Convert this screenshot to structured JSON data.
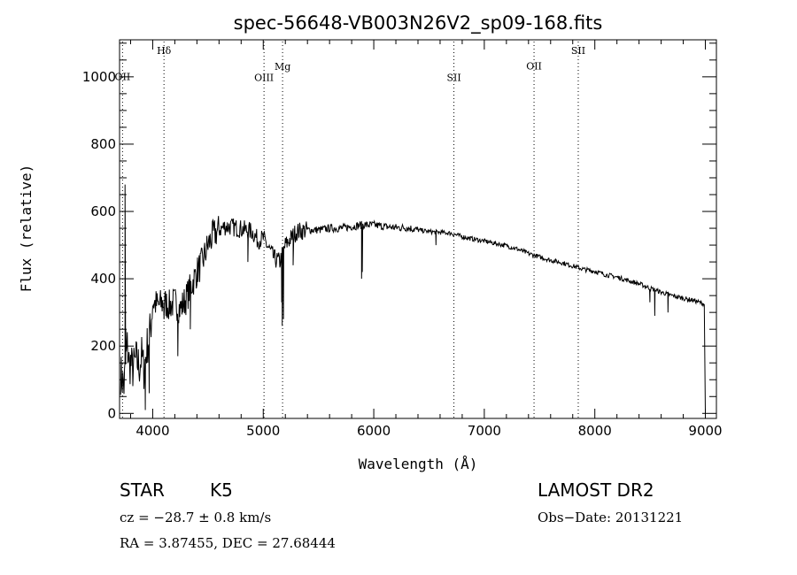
{
  "chart_data": {
    "type": "line",
    "title": "spec-56648-VB003N26V2_sp09-168.fits",
    "xlabel": "Wavelength (Å)",
    "ylabel": "Flux (relative)",
    "xlim": [
      3700,
      9100
    ],
    "ylim": [
      -15,
      1110
    ],
    "xticks": [
      4000,
      5000,
      6000,
      7000,
      8000,
      9000
    ],
    "yticks": [
      0,
      200,
      400,
      600,
      800,
      1000
    ],
    "grid": false,
    "line_color": "#000000",
    "anchors": [
      [
        3710,
        120
      ],
      [
        3740,
        80
      ],
      [
        3770,
        200
      ],
      [
        3790,
        140
      ],
      [
        3800,
        150
      ],
      [
        3820,
        130
      ],
      [
        3850,
        160
      ],
      [
        3880,
        140
      ],
      [
        3900,
        170
      ],
      [
        3920,
        130
      ],
      [
        3950,
        200
      ],
      [
        3980,
        250
      ],
      [
        4000,
        330
      ],
      [
        4050,
        320
      ],
      [
        4100,
        330
      ],
      [
        4150,
        320
      ],
      [
        4200,
        330
      ],
      [
        4250,
        310
      ],
      [
        4300,
        340
      ],
      [
        4350,
        380
      ],
      [
        4400,
        420
      ],
      [
        4450,
        450
      ],
      [
        4500,
        500
      ],
      [
        4550,
        530
      ],
      [
        4600,
        545
      ],
      [
        4650,
        555
      ],
      [
        4700,
        555
      ],
      [
        4800,
        548
      ],
      [
        4900,
        540
      ],
      [
        4950,
        515
      ],
      [
        5000,
        520
      ],
      [
        5050,
        490
      ],
      [
        5100,
        460
      ],
      [
        5150,
        450
      ],
      [
        5200,
        500
      ],
      [
        5250,
        520
      ],
      [
        5300,
        540
      ],
      [
        5400,
        545
      ],
      [
        5500,
        545
      ],
      [
        5600,
        550
      ],
      [
        5700,
        550
      ],
      [
        5800,
        555
      ],
      [
        5900,
        560
      ],
      [
        6000,
        560
      ],
      [
        6100,
        555
      ],
      [
        6200,
        552
      ],
      [
        6300,
        552
      ],
      [
        6400,
        545
      ],
      [
        6500,
        540
      ],
      [
        6600,
        538
      ],
      [
        6700,
        535
      ],
      [
        6800,
        525
      ],
      [
        6900,
        518
      ],
      [
        7000,
        512
      ],
      [
        7100,
        505
      ],
      [
        7200,
        498
      ],
      [
        7300,
        488
      ],
      [
        7400,
        475
      ],
      [
        7500,
        465
      ],
      [
        7600,
        455
      ],
      [
        7700,
        448
      ],
      [
        7800,
        438
      ],
      [
        7900,
        428
      ],
      [
        8000,
        422
      ],
      [
        8100,
        412
      ],
      [
        8200,
        405
      ],
      [
        8300,
        395
      ],
      [
        8400,
        385
      ],
      [
        8500,
        372
      ],
      [
        8600,
        360
      ],
      [
        8700,
        350
      ],
      [
        8800,
        342
      ],
      [
        8900,
        335
      ],
      [
        8990,
        325
      ]
    ],
    "features": [
      [
        3750,
        680
      ],
      [
        3756,
        250
      ],
      [
        3933,
        10
      ],
      [
        3968,
        60
      ],
      [
        4102,
        280
      ],
      [
        4227,
        170
      ],
      [
        4340,
        250
      ],
      [
        4861,
        450
      ],
      [
        5167,
        330
      ],
      [
        5172,
        260
      ],
      [
        5183,
        280
      ],
      [
        5270,
        440
      ],
      [
        5890,
        400
      ],
      [
        5896,
        420
      ],
      [
        6563,
        500
      ],
      [
        8498,
        330
      ],
      [
        8542,
        290
      ],
      [
        8662,
        300
      ],
      [
        9000,
        0
      ]
    ],
    "lines": [
      {
        "name": "OII",
        "x": 3727,
        "label_y": 990
      },
      {
        "name": "Hδ",
        "x": 4102,
        "label_y": 1068
      },
      {
        "name": "OIII",
        "x": 5007,
        "label_y": 988
      },
      {
        "name": "Mg",
        "x": 5175,
        "label_y": 1020
      },
      {
        "name": "SII",
        "x": 6725,
        "label_y": 988
      },
      {
        "name": "OII",
        "x": 7450,
        "label_y": 1022
      },
      {
        "name": "SII",
        "x": 7850,
        "label_y": 1068
      }
    ]
  },
  "info": {
    "object_class": "STAR",
    "subclass": "K5",
    "survey": "LAMOST DR2",
    "cz": "cz = −28.7 ± 0.8 km/s",
    "obs_date": "Obs−Date: 20131221",
    "coords": "RA =    3.87455, DEC =   27.68444"
  }
}
